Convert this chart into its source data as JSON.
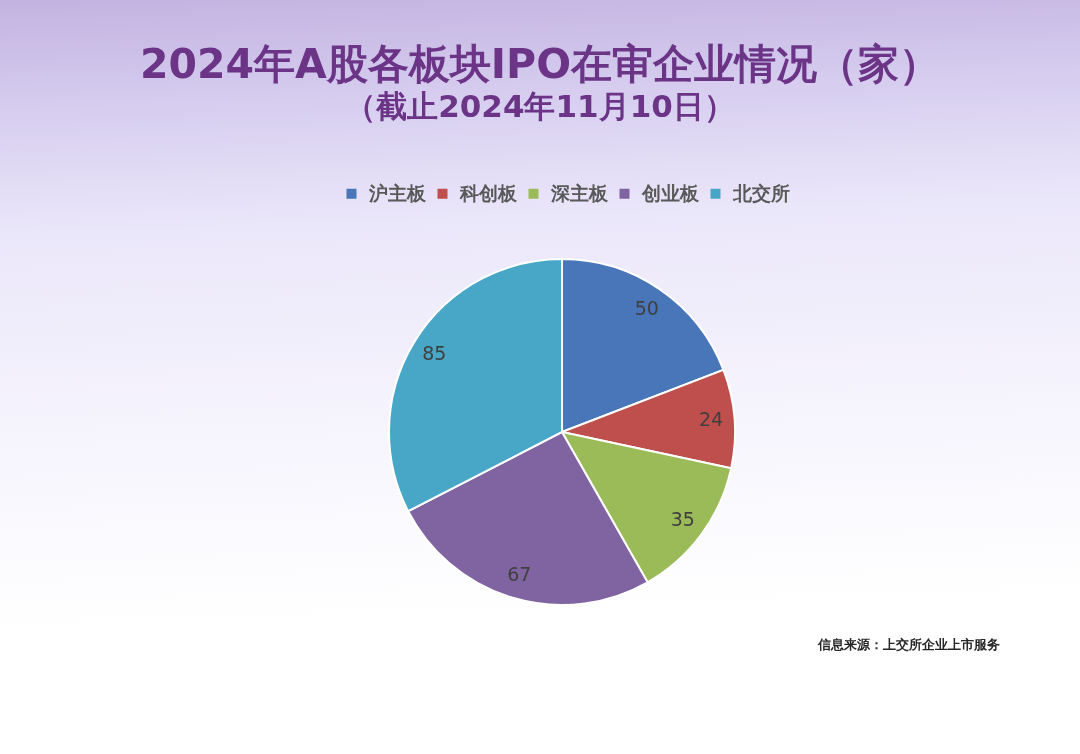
{
  "chart_data": {
    "type": "pie",
    "title": "2024年A股各板块IPO在审企业情况（家）",
    "subtitle": "（截止2024年11月10日）",
    "categories": [
      "沪主板",
      "科创板",
      "深主板",
      "创业板",
      "北交所"
    ],
    "values": [
      50,
      24,
      35,
      67,
      85
    ],
    "colors": [
      "#4876b9",
      "#be4f4c",
      "#9bbb59",
      "#8064a2",
      "#48a6c6"
    ],
    "data_labels": true,
    "legend": "top",
    "annotations": [
      "信息来源：上交所企业上市服务"
    ]
  }
}
